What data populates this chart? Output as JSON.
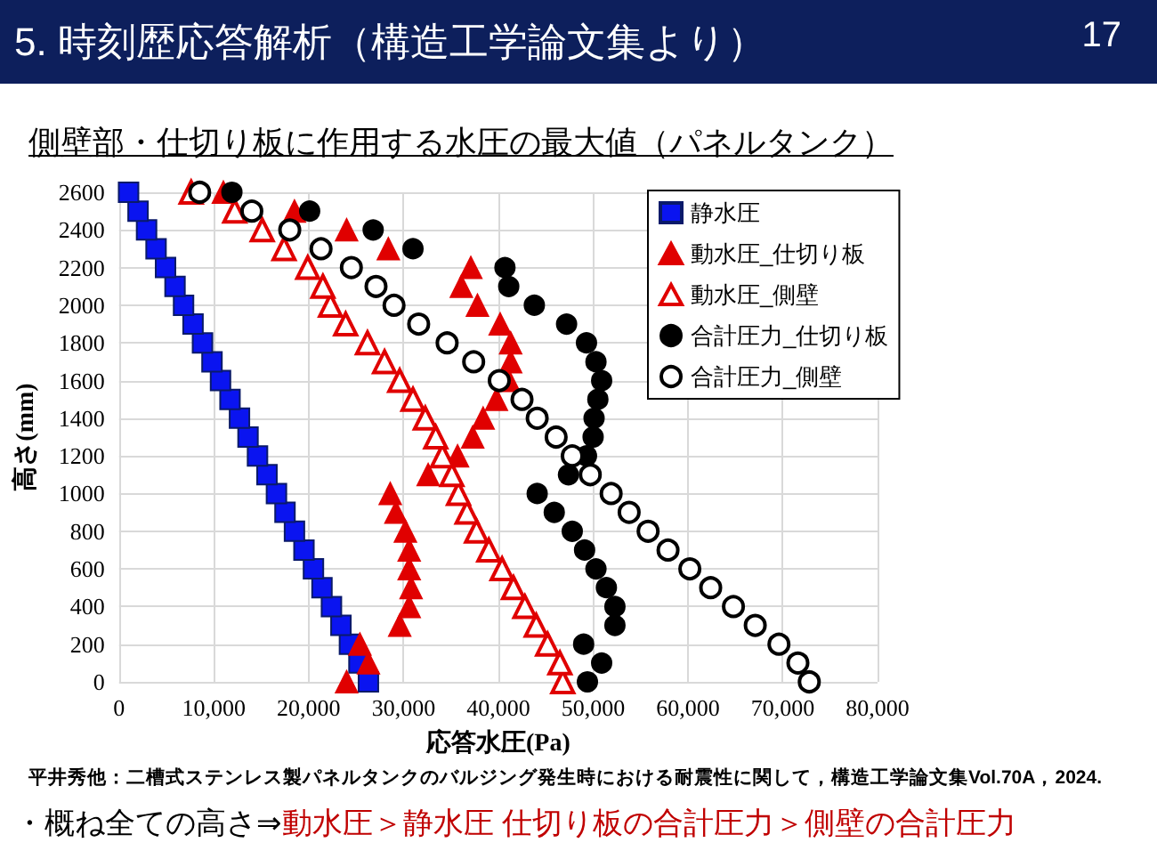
{
  "chart_data": {
    "type": "scatter",
    "title": "5. 時刻歴応答解析（構造工学論文集より）",
    "subtitle": "側壁部・仕切り板に作用する水圧の最大値（パネルタンク）",
    "xlabel": "応答水圧(Pa)",
    "ylabel": "高さ(mm)",
    "annotations": [
      "17",
      "平井秀他：二槽式ステンレス製パネルタンクのバルジング発生時における耐震性に関して，構造工学論文集Vol.70A，2024.",
      "・概ね全ての高さ⇒",
      "動水圧＞静水圧  仕切り板の合計圧力＞側壁の合計圧力"
    ],
    "xlim": [
      0,
      80000
    ],
    "xticks": [
      0,
      {
        "value": 10000,
        "label": "10,000"
      },
      {
        "value": 20000,
        "label": "20,000"
      },
      {
        "value": 30000,
        "label": "30,000"
      },
      {
        "value": 40000,
        "label": "40,000"
      },
      {
        "value": 50000,
        "label": "50,000"
      },
      {
        "value": 60000,
        "label": "60,000"
      },
      {
        "value": 70000,
        "label": "70,000"
      },
      {
        "value": 80000,
        "label": "80,000"
      }
    ],
    "ylim": [
      0,
      2600
    ],
    "yticks": [
      0,
      200,
      400,
      600,
      800,
      1000,
      1200,
      1400,
      1600,
      1800,
      2000,
      2200,
      2400,
      2600
    ],
    "grid": true,
    "legend": "top right",
    "series": [
      {
        "name": "静水圧",
        "color": "#0a14f0",
        "marker": "square",
        "x": [
          26300,
          25300,
          24300,
          23400,
          22400,
          21400,
          20500,
          19500,
          18500,
          17500,
          16600,
          15600,
          14600,
          13600,
          12700,
          11700,
          10700,
          9800,
          8800,
          7800,
          6800,
          5900,
          4900,
          3900,
          2900,
          2000,
          1000
        ],
        "values": [
          0,
          100,
          200,
          300,
          400,
          500,
          600,
          700,
          800,
          900,
          1000,
          1100,
          1200,
          1300,
          1400,
          1500,
          1600,
          1700,
          1800,
          1900,
          2000,
          2100,
          2200,
          2300,
          2400,
          2500,
          2600
        ]
      },
      {
        "name": "動水圧_仕切り板",
        "color": "#e00000",
        "marker": "triangle",
        "x": [
          24000,
          26300,
          25400,
          29600,
          30600,
          30800,
          30600,
          30600,
          30200,
          29200,
          28600,
          32600,
          35700,
          37300,
          38400,
          39800,
          41100,
          41300,
          41300,
          40200,
          37800,
          36100,
          37100,
          28400,
          24000,
          18500,
          11000
        ],
        "values": [
          0,
          100,
          200,
          300,
          400,
          500,
          600,
          700,
          800,
          900,
          1000,
          1100,
          1200,
          1300,
          1400,
          1500,
          1600,
          1700,
          1800,
          1900,
          2000,
          2100,
          2200,
          2300,
          2400,
          2500,
          2600
        ]
      },
      {
        "name": "動水圧_側壁",
        "color": "#e00000",
        "marker": "triangle-open",
        "x": [
          46800,
          46500,
          45200,
          44000,
          42800,
          41600,
          40400,
          39000,
          37700,
          36700,
          35800,
          35100,
          34100,
          33400,
          32300,
          31000,
          29600,
          28000,
          26200,
          23900,
          22300,
          21500,
          19900,
          17400,
          15100,
          12200,
          7600
        ],
        "values": [
          0,
          100,
          200,
          300,
          400,
          500,
          600,
          700,
          800,
          900,
          1000,
          1100,
          1200,
          1300,
          1400,
          1500,
          1600,
          1700,
          1800,
          1900,
          2000,
          2100,
          2200,
          2300,
          2400,
          2500,
          2600
        ]
      },
      {
        "name": "合計圧力_仕切り板",
        "color": "#000000",
        "marker": "circle",
        "x": [
          49400,
          50900,
          49000,
          52300,
          52300,
          51400,
          50300,
          49100,
          47800,
          45900,
          44100,
          47400,
          49300,
          50000,
          50100,
          50500,
          50900,
          50300,
          49300,
          47200,
          43800,
          41100,
          40700,
          31000,
          26800,
          20100,
          11900
        ],
        "values": [
          0,
          100,
          200,
          300,
          400,
          500,
          600,
          700,
          800,
          900,
          1000,
          1100,
          1200,
          1300,
          1400,
          1500,
          1600,
          1700,
          1800,
          1900,
          2000,
          2100,
          2200,
          2300,
          2400,
          2500,
          2600
        ]
      },
      {
        "name": "合計圧力_側壁",
        "color": "#000000",
        "marker": "circle-open",
        "x": [
          72800,
          71600,
          69600,
          67100,
          64800,
          62400,
          60200,
          57900,
          55800,
          53800,
          51900,
          49700,
          47800,
          46100,
          44100,
          42500,
          40100,
          37400,
          34600,
          31600,
          29000,
          27100,
          24500,
          21300,
          18000,
          14000,
          8500
        ],
        "values": [
          0,
          100,
          200,
          300,
          400,
          500,
          600,
          700,
          800,
          900,
          1000,
          1100,
          1200,
          1300,
          1400,
          1500,
          1600,
          1700,
          1800,
          1900,
          2000,
          2100,
          2200,
          2300,
          2400,
          2500,
          2600
        ]
      }
    ]
  }
}
